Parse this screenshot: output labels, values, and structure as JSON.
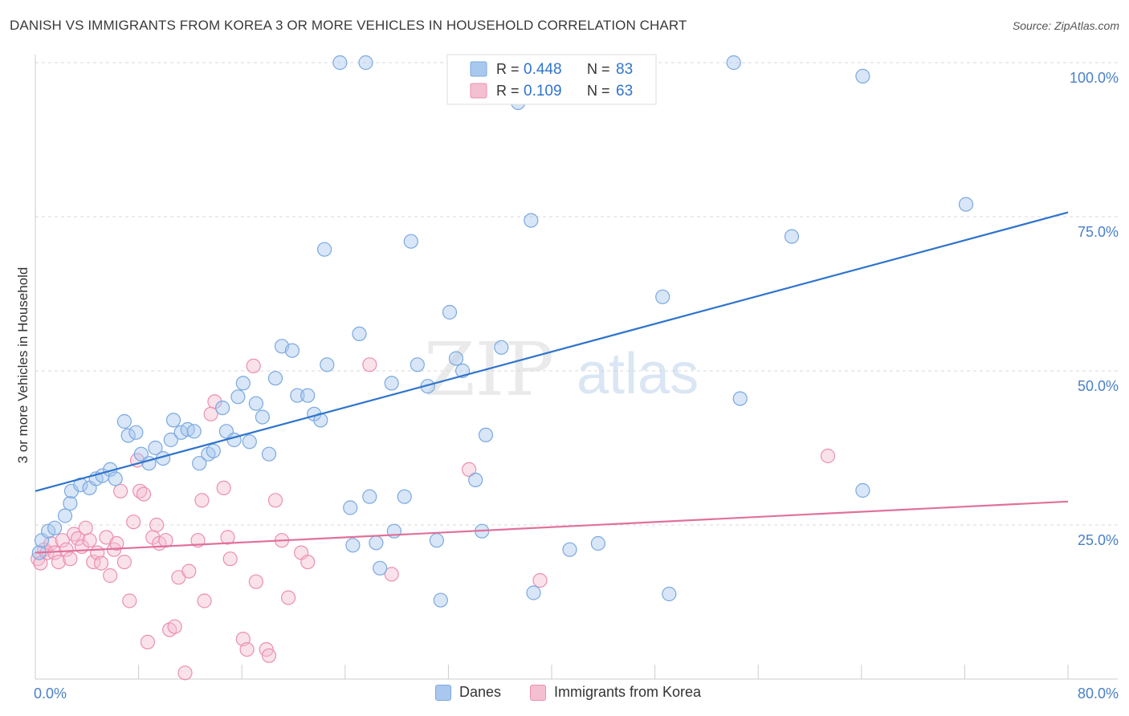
{
  "header": {
    "title": "DANISH VS IMMIGRANTS FROM KOREA 3 OR MORE VEHICLES IN HOUSEHOLD CORRELATION CHART",
    "source": "Source: ZipAtlas.com"
  },
  "watermark": {
    "zip": "ZIP",
    "atlas": "atlas"
  },
  "chart_data": {
    "type": "scatter",
    "ylabel": "3 or more Vehicles in Household",
    "xlim": [
      0,
      80
    ],
    "ylim": [
      0,
      100
    ],
    "x_tick_labels": [
      "0.0%",
      "80.0%"
    ],
    "y_ticks": [
      25,
      50,
      75,
      100
    ],
    "y_tick_labels": [
      "25.0%",
      "50.0%",
      "75.0%",
      "100.0%"
    ],
    "grid": true,
    "legend_position": "top-center",
    "stats_legend": [
      {
        "r_label": "R =",
        "r_value": "0.448",
        "n_label": "N =",
        "n_value": "83"
      },
      {
        "r_label": "R =",
        "r_value": "0.109",
        "n_label": "N =",
        "n_value": "63"
      }
    ],
    "series": [
      {
        "name": "Danes",
        "color": "#7aa9e0",
        "fill": "#a9c8ee",
        "line_color": "#2f74cc",
        "trend": {
          "x": [
            0,
            80
          ],
          "y": [
            30.5,
            75.7
          ]
        },
        "points": [
          [
            0.3,
            20.5
          ],
          [
            0.5,
            22.5
          ],
          [
            1,
            24
          ],
          [
            1.5,
            24.5
          ],
          [
            2.3,
            26.5
          ],
          [
            2.7,
            28.5
          ],
          [
            2.8,
            30.5
          ],
          [
            3.5,
            31.5
          ],
          [
            4.2,
            31
          ],
          [
            4.7,
            32.5
          ],
          [
            5.2,
            33
          ],
          [
            5.8,
            34
          ],
          [
            6.2,
            32.5
          ],
          [
            6.9,
            41.8
          ],
          [
            7.2,
            39.5
          ],
          [
            7.8,
            40
          ],
          [
            8.2,
            36.5
          ],
          [
            8.8,
            35
          ],
          [
            9.3,
            37.5
          ],
          [
            9.9,
            35.8
          ],
          [
            10.5,
            38.8
          ],
          [
            10.7,
            42
          ],
          [
            11.3,
            40
          ],
          [
            11.8,
            40.5
          ],
          [
            12.3,
            40.2
          ],
          [
            12.7,
            35
          ],
          [
            13.4,
            36.5
          ],
          [
            13.8,
            37
          ],
          [
            14.5,
            44
          ],
          [
            14.8,
            40.2
          ],
          [
            15.4,
            38.8
          ],
          [
            15.7,
            45.8
          ],
          [
            16.1,
            48
          ],
          [
            16.6,
            38.5
          ],
          [
            17.1,
            44.7
          ],
          [
            17.6,
            42.5
          ],
          [
            18.1,
            36.5
          ],
          [
            18.6,
            48.8
          ],
          [
            19.1,
            54
          ],
          [
            19.9,
            53.3
          ],
          [
            20.3,
            46
          ],
          [
            21.1,
            46
          ],
          [
            21.6,
            43
          ],
          [
            22.1,
            42
          ],
          [
            22.6,
            51
          ],
          [
            22.4,
            69.7
          ],
          [
            23.6,
            100
          ],
          [
            24.6,
            21.7
          ],
          [
            24.4,
            27.8
          ],
          [
            25.1,
            56
          ],
          [
            25.6,
            100
          ],
          [
            25.9,
            29.6
          ],
          [
            26.4,
            22.1
          ],
          [
            26.7,
            18
          ],
          [
            27.6,
            48
          ],
          [
            27.8,
            24
          ],
          [
            28.6,
            29.6
          ],
          [
            29.1,
            71
          ],
          [
            29.6,
            51
          ],
          [
            30.4,
            47.5
          ],
          [
            31.1,
            22.5
          ],
          [
            31.4,
            12.8
          ],
          [
            32.1,
            59.5
          ],
          [
            32.6,
            52
          ],
          [
            33.1,
            50
          ],
          [
            34.6,
            24
          ],
          [
            34.1,
            32.3
          ],
          [
            34.9,
            39.6
          ],
          [
            36.1,
            53.8
          ],
          [
            37.4,
            93.5
          ],
          [
            38.4,
            74.4
          ],
          [
            38.6,
            14
          ],
          [
            41.4,
            21
          ],
          [
            43.6,
            22
          ],
          [
            45.6,
            100
          ],
          [
            48.6,
            62
          ],
          [
            49.1,
            13.8
          ],
          [
            54.1,
            100
          ],
          [
            54.6,
            45.5
          ],
          [
            58.6,
            71.8
          ],
          [
            64.1,
            97.8
          ],
          [
            64.1,
            30.6
          ],
          [
            72.1,
            77
          ]
        ]
      },
      {
        "name": "Immigrants from Korea",
        "color": "#eb8fb0",
        "fill": "#f5bfd2",
        "line_color": "#e0719b",
        "trend": {
          "x": [
            0,
            80
          ],
          "y": [
            20.5,
            28.8
          ]
        },
        "points": [
          [
            0.2,
            19.5
          ],
          [
            0.4,
            18.8
          ],
          [
            0.7,
            21
          ],
          [
            0.9,
            20.5
          ],
          [
            1.2,
            22
          ],
          [
            1.5,
            20.5
          ],
          [
            1.8,
            19
          ],
          [
            2.1,
            22.5
          ],
          [
            2.4,
            21
          ],
          [
            2.7,
            19.5
          ],
          [
            3,
            23.5
          ],
          [
            3.3,
            22.8
          ],
          [
            3.6,
            21.5
          ],
          [
            3.9,
            24.5
          ],
          [
            4.2,
            22.5
          ],
          [
            4.5,
            19
          ],
          [
            4.8,
            20.5
          ],
          [
            5.1,
            18.8
          ],
          [
            5.5,
            23
          ],
          [
            5.8,
            16.8
          ],
          [
            6.1,
            21
          ],
          [
            6.3,
            22
          ],
          [
            6.6,
            30.5
          ],
          [
            6.9,
            19
          ],
          [
            7.3,
            12.7
          ],
          [
            7.6,
            25.5
          ],
          [
            7.9,
            35.5
          ],
          [
            8.1,
            30.5
          ],
          [
            8.4,
            30
          ],
          [
            8.7,
            6
          ],
          [
            9.1,
            23
          ],
          [
            9.4,
            25
          ],
          [
            9.6,
            22
          ],
          [
            10.1,
            22.5
          ],
          [
            10.4,
            8
          ],
          [
            10.8,
            8.5
          ],
          [
            11.1,
            16.5
          ],
          [
            11.6,
            1
          ],
          [
            11.9,
            17.5
          ],
          [
            12.6,
            22.5
          ],
          [
            12.9,
            29
          ],
          [
            13.1,
            12.7
          ],
          [
            13.6,
            43
          ],
          [
            13.9,
            45
          ],
          [
            14.6,
            31
          ],
          [
            14.9,
            23
          ],
          [
            15.1,
            19.5
          ],
          [
            16.1,
            6.5
          ],
          [
            16.4,
            4.8
          ],
          [
            16.9,
            50.8
          ],
          [
            17.1,
            15.8
          ],
          [
            17.9,
            4.8
          ],
          [
            18.1,
            3.8
          ],
          [
            18.6,
            29
          ],
          [
            19.1,
            22.5
          ],
          [
            19.6,
            13.2
          ],
          [
            20.6,
            20.5
          ],
          [
            21.1,
            19
          ],
          [
            25.9,
            51
          ],
          [
            27.6,
            17
          ],
          [
            33.6,
            34
          ],
          [
            39.1,
            16
          ],
          [
            61.4,
            36.2
          ]
        ]
      }
    ]
  },
  "bottom_legend": [
    {
      "label": "Danes",
      "fill": "#a9c8ee",
      "border": "#7aa9e0"
    },
    {
      "label": "Immigrants from Korea",
      "fill": "#f5bfd2",
      "border": "#eb8fb0"
    }
  ]
}
